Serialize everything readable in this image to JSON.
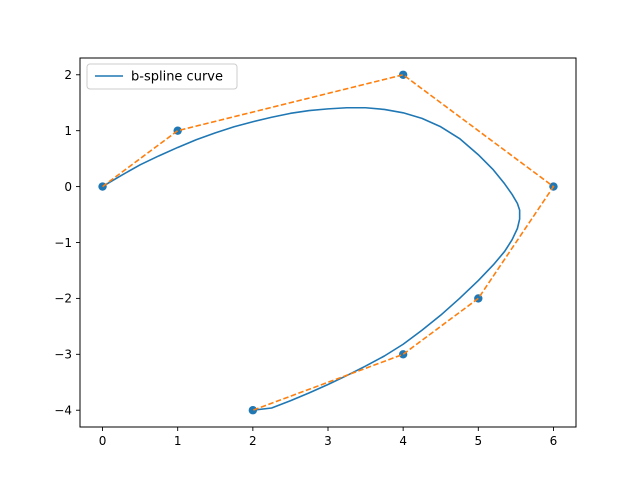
{
  "chart_data": {
    "type": "line",
    "title": "",
    "xlabel": "",
    "ylabel": "",
    "xlim": [
      -0.3,
      6.3
    ],
    "ylim": [
      -4.3,
      2.3
    ],
    "xticks": [
      0,
      1,
      2,
      3,
      4,
      5,
      6
    ],
    "yticks": [
      -4,
      -3,
      -2,
      -1,
      0,
      1,
      2
    ],
    "xtick_labels": [
      "0",
      "1",
      "2",
      "3",
      "4",
      "5",
      "6"
    ],
    "ytick_labels": [
      "−4",
      "−3",
      "−2",
      "−1",
      "0",
      "1",
      "2"
    ],
    "grid": false,
    "legend": {
      "position": "top-left",
      "entries": [
        "b-spline curve"
      ]
    },
    "colors": {
      "curve": "#1f77b4",
      "control": "#ff7f0e",
      "points": "#1f77b4"
    },
    "series": [
      {
        "name": "b-spline curve",
        "kind": "line",
        "x": [
          0.0,
          0.1,
          0.25,
          0.5,
          0.75,
          1.0,
          1.25,
          1.5,
          1.75,
          2.0,
          2.25,
          2.5,
          2.75,
          3.0,
          3.25,
          3.5,
          3.75,
          4.0,
          4.25,
          4.5,
          4.75,
          5.0,
          5.2,
          5.35,
          5.45,
          5.52,
          5.55,
          5.55,
          5.52,
          5.45,
          5.35,
          5.2,
          5.0,
          4.75,
          4.5,
          4.25,
          4.0,
          3.75,
          3.5,
          3.25,
          3.0,
          2.75,
          2.5,
          2.25,
          2.0
        ],
        "y": [
          0.0,
          0.08,
          0.2,
          0.39,
          0.55,
          0.7,
          0.84,
          0.96,
          1.07,
          1.16,
          1.24,
          1.31,
          1.36,
          1.39,
          1.41,
          1.41,
          1.38,
          1.32,
          1.22,
          1.07,
          0.86,
          0.57,
          0.3,
          0.05,
          -0.14,
          -0.3,
          -0.42,
          -0.58,
          -0.75,
          -0.95,
          -1.16,
          -1.4,
          -1.68,
          -2.0,
          -2.3,
          -2.57,
          -2.82,
          -3.03,
          -3.21,
          -3.38,
          -3.54,
          -3.69,
          -3.83,
          -3.96,
          -4.0
        ]
      },
      {
        "name": "",
        "kind": "control-polygon",
        "x": [
          0,
          1,
          4,
          6,
          5,
          4,
          2
        ],
        "y": [
          0,
          1,
          2,
          0,
          -2,
          -3,
          -4
        ]
      }
    ]
  }
}
